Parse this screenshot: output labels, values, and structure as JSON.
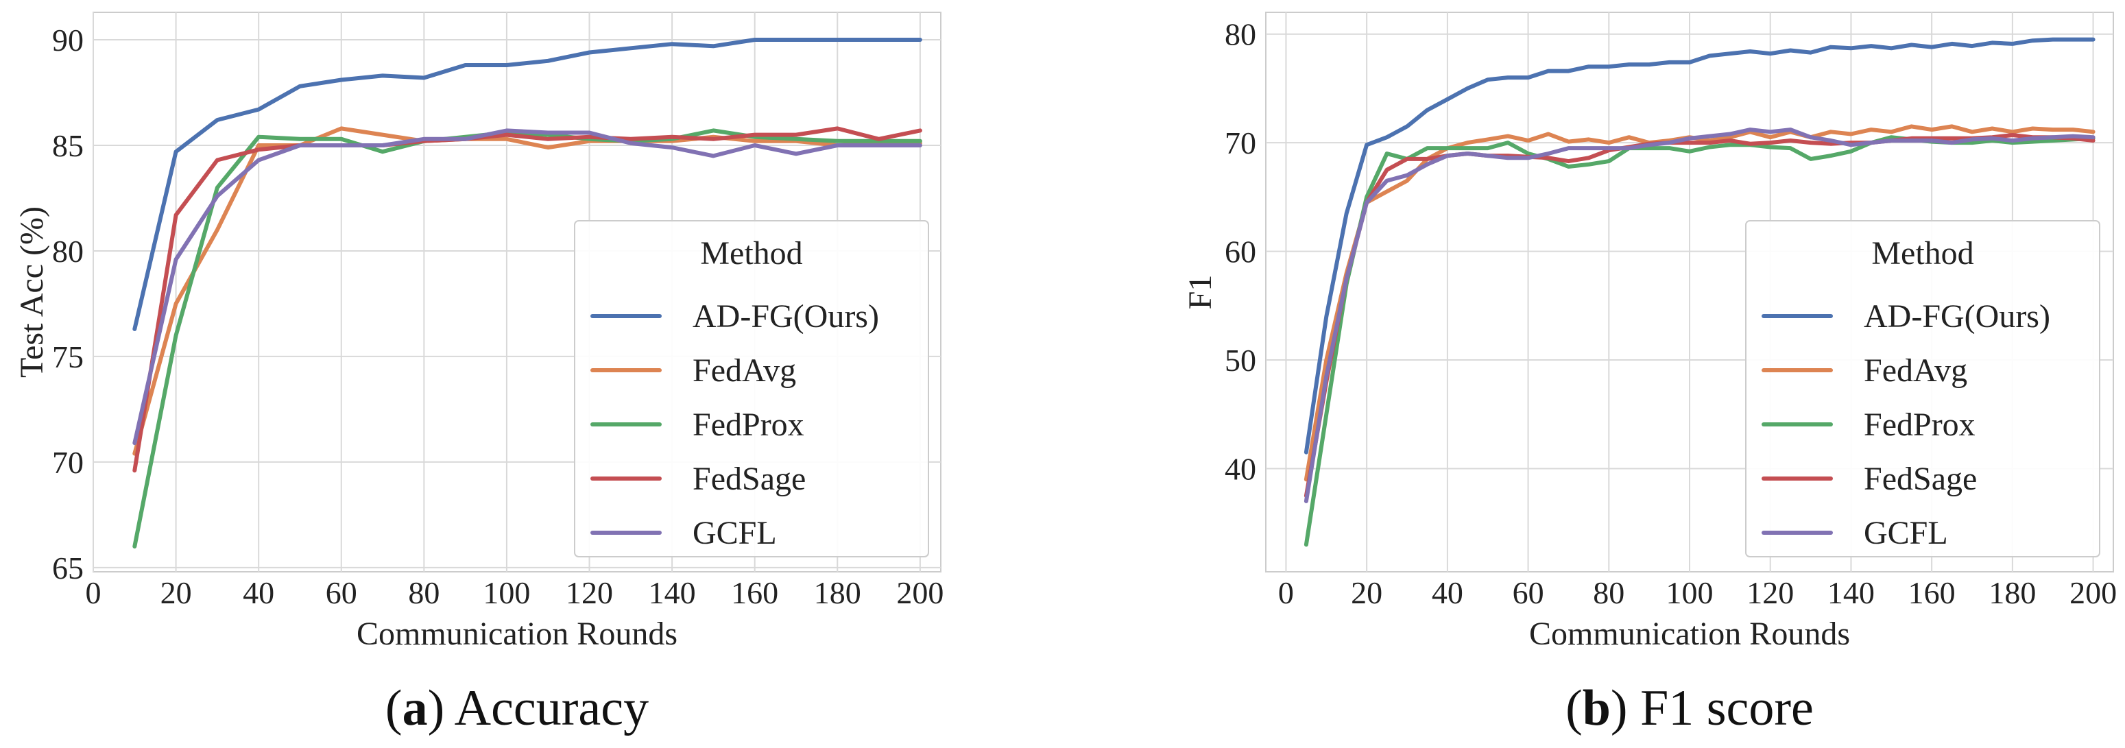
{
  "chart_data": [
    {
      "type": "line",
      "panel": "a",
      "caption_letter": "a",
      "caption_text": "Accuracy",
      "xlabel": "Communication Rounds",
      "ylabel": "Test Acc (%)",
      "xlim": [
        0,
        205
      ],
      "ylim": [
        64.8,
        91.3
      ],
      "xticks": [
        0,
        20,
        40,
        60,
        80,
        100,
        120,
        140,
        160,
        180,
        200
      ],
      "yticks": [
        65,
        70,
        75,
        80,
        85,
        90
      ],
      "grid": true,
      "legend_title": "Method",
      "legend_position": "lower-right",
      "x": [
        10,
        20,
        30,
        40,
        50,
        60,
        70,
        80,
        90,
        100,
        110,
        120,
        130,
        140,
        150,
        160,
        170,
        180,
        190,
        200
      ],
      "series": [
        {
          "name": "AD-FG(Ours)",
          "color": "#4c72b0",
          "values": [
            76.3,
            84.7,
            86.2,
            86.7,
            87.8,
            88.1,
            88.3,
            88.2,
            88.8,
            88.8,
            89.0,
            89.4,
            89.6,
            89.8,
            89.7,
            90.0,
            90.0,
            90.0,
            90.0,
            90.0
          ]
        },
        {
          "name": "FedAvg",
          "color": "#dd8452",
          "values": [
            70.4,
            77.5,
            81.0,
            85.0,
            85.0,
            85.8,
            85.5,
            85.2,
            85.3,
            85.3,
            84.9,
            85.2,
            85.2,
            85.2,
            85.4,
            85.2,
            85.2,
            85.0,
            85.1,
            85.1
          ]
        },
        {
          "name": "FedProx",
          "color": "#55a868",
          "values": [
            66.0,
            76.0,
            83.0,
            85.4,
            85.3,
            85.3,
            84.7,
            85.2,
            85.4,
            85.6,
            85.5,
            85.3,
            85.2,
            85.3,
            85.7,
            85.4,
            85.3,
            85.2,
            85.2,
            85.2
          ]
        },
        {
          "name": "FedSage",
          "color": "#c44e52",
          "values": [
            69.6,
            81.7,
            84.3,
            84.8,
            85.0,
            85.0,
            85.0,
            85.2,
            85.3,
            85.5,
            85.3,
            85.4,
            85.3,
            85.4,
            85.3,
            85.5,
            85.5,
            85.8,
            85.3,
            85.7
          ]
        },
        {
          "name": "GCFL",
          "color": "#8172b3",
          "values": [
            70.9,
            79.6,
            82.6,
            84.3,
            85.0,
            85.0,
            85.0,
            85.3,
            85.3,
            85.7,
            85.6,
            85.6,
            85.1,
            84.9,
            84.5,
            85.0,
            84.6,
            85.0,
            85.0,
            85.0
          ]
        }
      ]
    },
    {
      "type": "line",
      "panel": "b",
      "caption_letter": "b",
      "caption_text": "F1 score",
      "xlabel": "Communication Rounds",
      "ylabel": "F1",
      "xlim": [
        -5,
        205
      ],
      "ylim": [
        30.5,
        82.0
      ],
      "xticks": [
        0,
        20,
        40,
        60,
        80,
        100,
        120,
        140,
        160,
        180,
        200
      ],
      "yticks": [
        40,
        50,
        60,
        70,
        80
      ],
      "grid": true,
      "legend_title": "Method",
      "legend_position": "lower-right",
      "x": [
        5,
        10,
        15,
        20,
        25,
        30,
        35,
        40,
        45,
        50,
        55,
        60,
        65,
        70,
        75,
        80,
        85,
        90,
        95,
        100,
        105,
        110,
        115,
        120,
        125,
        130,
        135,
        140,
        145,
        150,
        155,
        160,
        165,
        170,
        175,
        180,
        185,
        190,
        195,
        200
      ],
      "series": [
        {
          "name": "AD-FG(Ours)",
          "color": "#4c72b0",
          "values": [
            41.5,
            54.0,
            63.5,
            69.8,
            70.5,
            71.5,
            73.0,
            74.0,
            75.0,
            75.8,
            76.0,
            76.0,
            76.6,
            76.6,
            77.0,
            77.0,
            77.2,
            77.2,
            77.4,
            77.4,
            78.0,
            78.2,
            78.4,
            78.2,
            78.5,
            78.3,
            78.8,
            78.7,
            78.9,
            78.7,
            79.0,
            78.8,
            79.1,
            78.9,
            79.2,
            79.1,
            79.4,
            79.5,
            79.5,
            79.5
          ]
        },
        {
          "name": "FedAvg",
          "color": "#dd8452",
          "values": [
            39.0,
            50.0,
            58.0,
            64.5,
            65.5,
            66.5,
            68.5,
            69.5,
            70.0,
            70.3,
            70.6,
            70.2,
            70.8,
            70.1,
            70.3,
            70.0,
            70.5,
            70.0,
            70.2,
            70.5,
            70.2,
            70.5,
            71.0,
            70.5,
            71.0,
            70.5,
            71.0,
            70.8,
            71.2,
            71.0,
            71.5,
            71.2,
            71.5,
            71.0,
            71.3,
            71.0,
            71.3,
            71.2,
            71.2,
            71.0
          ]
        },
        {
          "name": "FedProx",
          "color": "#55a868",
          "values": [
            33.0,
            45.0,
            57.0,
            65.0,
            69.0,
            68.5,
            69.5,
            69.5,
            69.5,
            69.5,
            70.0,
            69.0,
            68.5,
            67.8,
            68.0,
            68.3,
            69.5,
            69.5,
            69.5,
            69.2,
            69.6,
            69.8,
            69.8,
            69.6,
            69.5,
            68.5,
            68.8,
            69.2,
            70.0,
            70.5,
            70.3,
            70.1,
            70.0,
            70.0,
            70.2,
            70.0,
            70.1,
            70.2,
            70.3,
            70.4
          ]
        },
        {
          "name": "FedSage",
          "color": "#c44e52",
          "values": [
            37.5,
            48.0,
            57.5,
            64.5,
            67.5,
            68.5,
            68.5,
            68.8,
            69.0,
            68.8,
            68.8,
            68.7,
            68.6,
            68.3,
            68.6,
            69.3,
            69.6,
            69.9,
            70.0,
            70.0,
            70.0,
            70.2,
            69.9,
            70.0,
            70.2,
            70.0,
            69.9,
            70.0,
            70.0,
            70.2,
            70.4,
            70.4,
            70.4,
            70.4,
            70.5,
            70.7,
            70.5,
            70.5,
            70.4,
            70.2
          ]
        },
        {
          "name": "GCFL",
          "color": "#8172b3",
          "values": [
            37.0,
            48.5,
            57.5,
            64.5,
            66.5,
            67.0,
            68.0,
            68.8,
            69.0,
            68.8,
            68.6,
            68.6,
            69.0,
            69.5,
            69.5,
            69.5,
            69.5,
            69.8,
            70.0,
            70.4,
            70.6,
            70.8,
            71.2,
            71.0,
            71.2,
            70.5,
            70.2,
            69.8,
            70.0,
            70.2,
            70.2,
            70.2,
            70.0,
            70.3,
            70.4,
            70.2,
            70.4,
            70.5,
            70.6,
            70.5
          ]
        }
      ]
    }
  ]
}
